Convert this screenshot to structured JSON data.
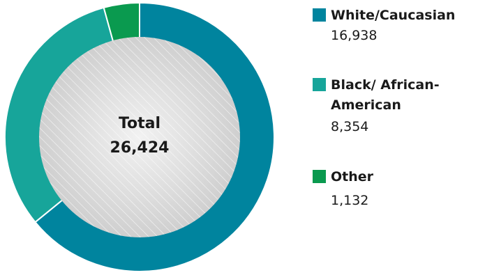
{
  "chart_data": {
    "type": "pie",
    "donut": true,
    "center_label": "Total",
    "center_value": "26,424",
    "categories": [
      "White/Caucasian",
      "Black/ African-American",
      "Other"
    ],
    "labels": [
      "16,938",
      "8,354",
      "1,132"
    ],
    "values": [
      16938,
      8354,
      1132
    ],
    "legend_position": "right",
    "colors": {
      "White/Caucasian": "#00849e",
      "Black/ African-American": "#17a59a",
      "Other": "#0a9a4f"
    },
    "inner_fill": "#d8d8d8"
  }
}
